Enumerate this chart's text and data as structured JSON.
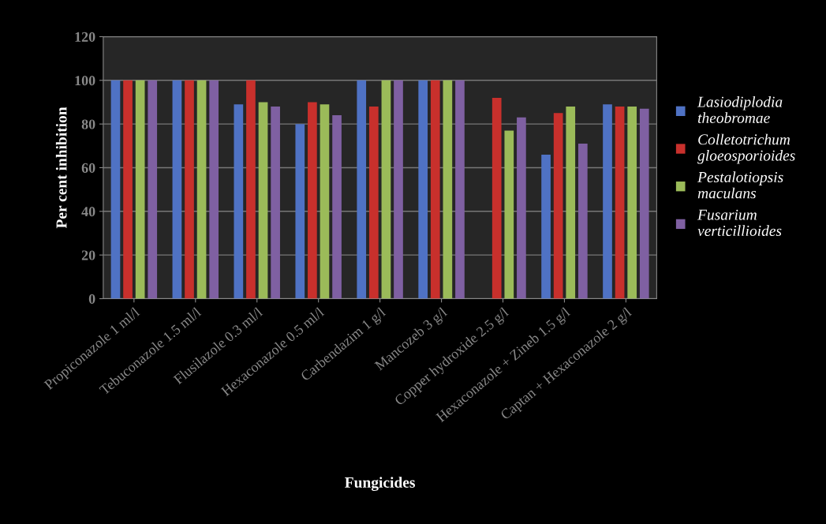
{
  "chart_data": {
    "type": "bar",
    "xlabel": "Fungicides",
    "ylabel": "Per cent inhibition",
    "categories": [
      "Propiconazole 1 ml/l",
      "Tebuconazole 1.5 ml/l",
      "Flusilazole 0.3 ml/l",
      "Hexaconazole 0.5 ml/l",
      "Carbendazim 1 g/l",
      "Mancozeb 3 g/l",
      "Copper hydroxide 2.5 g/l",
      "Hexaconazole + Zineb 1.5 g/l",
      "Captan + Hexaconazole 2 g/l"
    ],
    "series": [
      {
        "name": "Lasiodiplodia theobromae",
        "color": "#4f72c4",
        "values": [
          100,
          100,
          89,
          80,
          100,
          100,
          0,
          66,
          89
        ]
      },
      {
        "name": "Colletotrichum gloeosporioides",
        "color": "#c8302c",
        "values": [
          100,
          100,
          100,
          90,
          88,
          100,
          92,
          85,
          88
        ]
      },
      {
        "name": "Pestalotiopsis maculans",
        "color": "#9bbb59",
        "values": [
          100,
          100,
          90,
          89,
          100,
          100,
          77,
          88,
          88
        ]
      },
      {
        "name": "Fusarium verticillioides",
        "color": "#7f60a2",
        "values": [
          100,
          100,
          88,
          84,
          100,
          100,
          83,
          71,
          87
        ]
      }
    ],
    "ylim": [
      0,
      120
    ],
    "yticks": [
      0,
      20,
      40,
      60,
      80,
      100,
      120
    ],
    "grid": "y",
    "legend": "right"
  }
}
